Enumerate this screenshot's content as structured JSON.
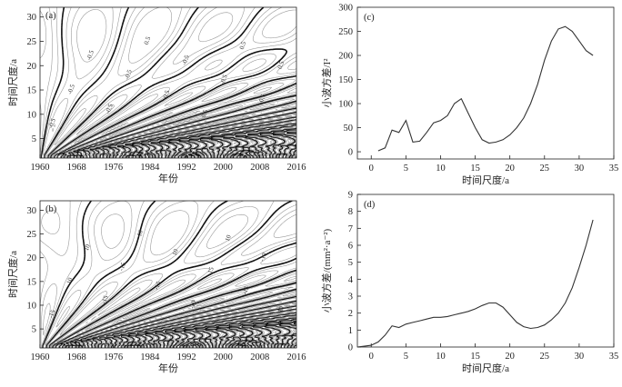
{
  "chart_data": [
    {
      "type": "contour",
      "panel_label": "(a)",
      "xlabel": "年份",
      "ylabel": "时间尺度/a",
      "xticks": [
        "1960",
        "1968",
        "1976",
        "1984",
        "1992",
        "2000",
        "2008",
        "2016"
      ],
      "yticks": [
        "5",
        "10",
        "15",
        "20",
        "25",
        "30"
      ],
      "xlim": [
        1960,
        2016
      ],
      "ylim": [
        1,
        32
      ],
      "contour_labels": [
        "-0.5",
        "-0.5",
        "-0.5",
        "-0.5",
        "-0.5",
        "0.5",
        "0.5",
        "-0.5",
        "0.5",
        "-0.5",
        "0.5",
        "-0.5",
        "0.5"
      ]
    },
    {
      "type": "line",
      "panel_label": "(c)",
      "xlabel": "时间尺度/a",
      "ylabel": "小波方差/I²",
      "xticks": [
        "0",
        "5",
        "10",
        "15",
        "20",
        "25",
        "30",
        "35"
      ],
      "yticks": [
        "0",
        "50",
        "100",
        "150",
        "200",
        "250",
        "300"
      ],
      "xlim": [
        -2,
        35
      ],
      "ylim": [
        -15,
        300
      ],
      "x": [
        1,
        2,
        3,
        4,
        5,
        6,
        7,
        8,
        9,
        10,
        11,
        12,
        13,
        14,
        15,
        16,
        17,
        18,
        19,
        20,
        21,
        22,
        23,
        24,
        25,
        26,
        27,
        28,
        29,
        30,
        31,
        32
      ],
      "values": [
        2,
        8,
        45,
        40,
        65,
        20,
        22,
        40,
        60,
        65,
        75,
        100,
        110,
        80,
        50,
        25,
        18,
        20,
        25,
        35,
        50,
        70,
        100,
        140,
        190,
        230,
        255,
        260,
        250,
        230,
        210,
        200
      ]
    },
    {
      "type": "contour",
      "panel_label": "(b)",
      "xlabel": "年份",
      "ylabel": "时间尺度/a",
      "xticks": [
        "1960",
        "1968",
        "1976",
        "1984",
        "1992",
        "2000",
        "2008",
        "2016"
      ],
      "yticks": [
        "5",
        "10",
        "15",
        "20",
        "25",
        "30"
      ],
      "xlim": [
        1960,
        2016
      ],
      "ylim": [
        1,
        32
      ],
      "contour_labels": [
        "-15",
        "10",
        "10",
        "-15",
        "-15",
        "10",
        "-15",
        "10",
        "-10",
        "-15",
        "10",
        "-15",
        "-10",
        "10"
      ]
    },
    {
      "type": "line",
      "panel_label": "(d)",
      "xlabel": "时间尺度/a",
      "ylabel": "小波方差/(mm²·a⁻²)",
      "xticks": [
        "0",
        "5",
        "10",
        "15",
        "20",
        "25",
        "30",
        "35"
      ],
      "yticks": [
        "0",
        "1",
        "2",
        "3",
        "4",
        "5",
        "6",
        "7",
        "8",
        "9"
      ],
      "xlim": [
        -2,
        35
      ],
      "ylim": [
        0,
        9
      ],
      "x": [
        -2,
        -1,
        0,
        1,
        2,
        3,
        4,
        5,
        6,
        7,
        8,
        9,
        10,
        11,
        12,
        13,
        14,
        15,
        16,
        17,
        18,
        19,
        20,
        21,
        22,
        23,
        24,
        25,
        26,
        27,
        28,
        29,
        30,
        31,
        32
      ],
      "values": [
        0,
        0.05,
        0.1,
        0.3,
        0.7,
        1.25,
        1.15,
        1.35,
        1.45,
        1.55,
        1.65,
        1.75,
        1.75,
        1.8,
        1.9,
        2.0,
        2.1,
        2.25,
        2.45,
        2.6,
        2.6,
        2.35,
        1.9,
        1.45,
        1.2,
        1.1,
        1.15,
        1.3,
        1.6,
        2.0,
        2.6,
        3.5,
        4.7,
        6.0,
        7.5
      ]
    }
  ]
}
